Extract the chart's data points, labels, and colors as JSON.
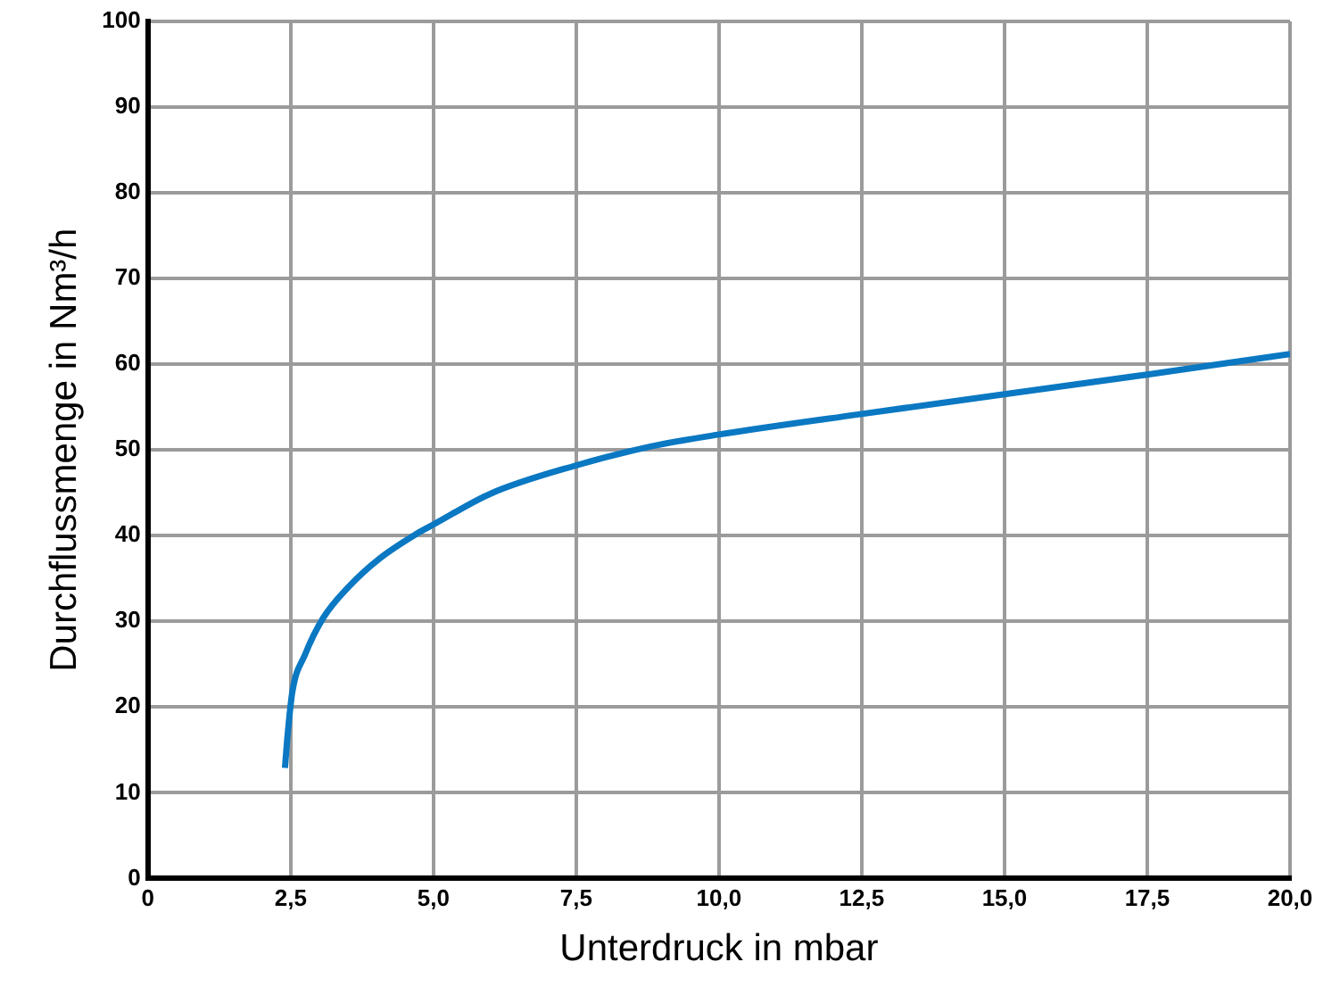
{
  "chart_data": {
    "type": "line",
    "xlabel": "Unterdruck in mbar",
    "ylabel": "Durchflussmenge in Nm³/h",
    "x": [
      2.4,
      2.45,
      2.53,
      2.75,
      3.07,
      3.51,
      4.05,
      4.7,
      5.0,
      6.0,
      7.5,
      8.8,
      10.0,
      12.5,
      15.0,
      17.5,
      20.0
    ],
    "series": [
      {
        "color": "#0a78c2",
        "values": [
          12.9,
          17,
          21.8,
          26.1,
          30.4,
          34,
          37.3,
          40.2,
          41.3,
          44.9,
          48.2,
          50.4,
          51.8,
          54.2,
          56.5,
          58.8,
          61.2
        ]
      }
    ],
    "xlim": [
      0,
      20
    ],
    "xticks": [
      {
        "value": 0,
        "label": "0"
      },
      {
        "value": 2.5,
        "label": "2,5"
      },
      {
        "value": 5,
        "label": "5,0"
      },
      {
        "value": 7.5,
        "label": "7,5"
      },
      {
        "value": 10,
        "label": "10,0"
      },
      {
        "value": 12.5,
        "label": "12,5"
      },
      {
        "value": 15,
        "label": "15,0"
      },
      {
        "value": 17.5,
        "label": "17,5"
      },
      {
        "value": 20,
        "label": "20,0"
      }
    ],
    "ylim": [
      0,
      100
    ],
    "yticks": [
      0,
      10,
      20,
      30,
      40,
      50,
      60,
      70,
      80,
      90,
      100
    ],
    "grid": true,
    "legend": false,
    "marker": "none",
    "line_style": "solid"
  }
}
